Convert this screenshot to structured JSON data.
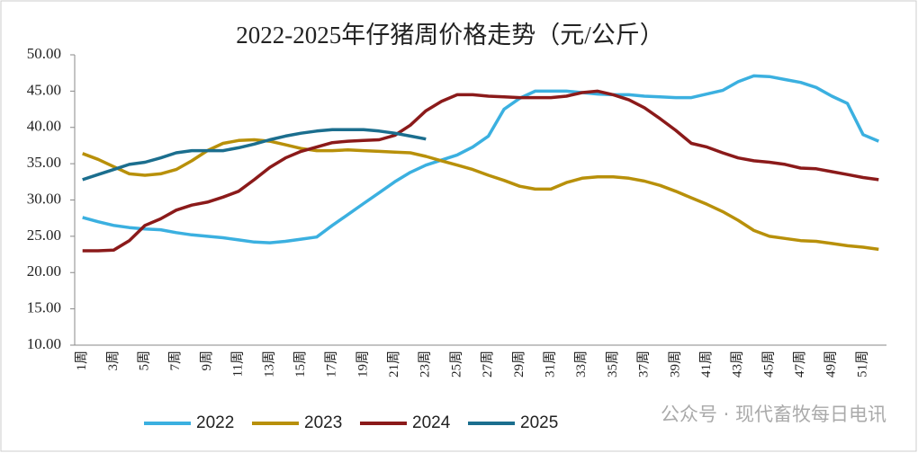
{
  "chart_data": {
    "type": "line",
    "title": "2022-2025年仔猪周价格走势（元/公斤）",
    "annotations": [
      "公众号 · 现代畜牧每日电讯"
    ],
    "categories": [
      "1周",
      null,
      "3周",
      null,
      "5周",
      null,
      "7周",
      null,
      "9周",
      null,
      "11周",
      null,
      "13周",
      null,
      "15周",
      null,
      "17周",
      null,
      "19周",
      null,
      "21周",
      null,
      "23周",
      null,
      "25周",
      null,
      "27周",
      null,
      "29周",
      null,
      "31周",
      null,
      "33周",
      null,
      "35周",
      null,
      "37周",
      null,
      "39周",
      null,
      "41周",
      null,
      "43周",
      null,
      "45周",
      null,
      "47周",
      null,
      "49周",
      null,
      "51周",
      null
    ],
    "ylim": [
      10,
      50
    ],
    "yticks": [
      {
        "value": 10,
        "label": "10.00"
      },
      {
        "value": 15,
        "label": "15.00"
      },
      {
        "value": 20,
        "label": "20.00"
      },
      {
        "value": 25,
        "label": "25.00"
      },
      {
        "value": 30,
        "label": "30.00"
      },
      {
        "value": 35,
        "label": "35.00"
      },
      {
        "value": 40,
        "label": "40.00"
      },
      {
        "value": 45,
        "label": "45.00"
      },
      {
        "value": 50,
        "label": "50.00"
      }
    ],
    "grid": false,
    "legend": "bottom",
    "series": [
      {
        "name": "2022",
        "color": "#3bb0e0",
        "values": [
          27.6,
          27,
          26.5,
          26.2,
          26,
          25.9,
          25.5,
          25.2,
          25,
          24.8,
          24.5,
          24.2,
          24.1,
          24.3,
          24.6,
          24.9,
          26.5,
          28,
          29.5,
          31,
          32.5,
          33.8,
          34.8,
          35.5,
          36.2,
          37.3,
          38.8,
          42.5,
          44,
          45,
          45,
          45,
          44.8,
          44.6,
          44.5,
          44.5,
          44.3,
          44.2,
          44.1,
          44.1,
          44.6,
          45.1,
          46.3,
          47.1,
          47,
          46.6,
          46.2,
          45.5,
          44.3,
          43.3,
          39,
          38.1
        ]
      },
      {
        "name": "2023",
        "color": "#b8900a",
        "values": [
          36.4,
          35.6,
          34.6,
          33.6,
          33.4,
          33.6,
          34.2,
          35.4,
          36.8,
          37.8,
          38.2,
          38.3,
          38.1,
          37.6,
          37.1,
          36.8,
          36.8,
          36.9,
          36.8,
          36.7,
          36.6,
          36.5,
          36,
          35.4,
          34.8,
          34.2,
          33.4,
          32.7,
          31.9,
          31.5,
          31.5,
          32.4,
          33,
          33.2,
          33.2,
          33,
          32.6,
          32,
          31.2,
          30.3,
          29.4,
          28.4,
          27.2,
          25.8,
          25,
          24.7,
          24.4,
          24.3,
          24,
          23.7,
          23.5,
          23.2
        ]
      },
      {
        "name": "2024",
        "color": "#8b1a1a",
        "values": [
          23,
          23,
          23.1,
          24.4,
          26.5,
          27.4,
          28.6,
          29.3,
          29.7,
          30.4,
          31.2,
          32.8,
          34.5,
          35.8,
          36.7,
          37.3,
          37.9,
          38.1,
          38.2,
          38.3,
          38.9,
          40.3,
          42.3,
          43.6,
          44.5,
          44.5,
          44.3,
          44.2,
          44.1,
          44.1,
          44.1,
          44.3,
          44.8,
          45,
          44.5,
          43.8,
          42.7,
          41.2,
          39.6,
          37.8,
          37.3,
          36.5,
          35.8,
          35.4,
          35.2,
          34.9,
          34.4,
          34.3,
          33.9,
          33.5,
          33.1,
          32.8
        ]
      },
      {
        "name": "2025",
        "color": "#1b6e8e",
        "values": [
          32.8,
          33.5,
          34.2,
          34.9,
          35.2,
          35.8,
          36.5,
          36.8,
          36.8,
          36.8,
          37.2,
          37.7,
          38.3,
          38.8,
          39.2,
          39.5,
          39.7,
          39.7,
          39.7,
          39.5,
          39.2,
          38.8,
          38.4,
          null,
          null,
          null,
          null,
          null,
          null,
          null,
          null,
          null,
          null,
          null,
          null,
          null,
          null,
          null,
          null,
          null,
          null,
          null,
          null,
          null,
          null,
          null,
          null,
          null,
          null,
          null,
          null,
          null
        ]
      }
    ]
  }
}
